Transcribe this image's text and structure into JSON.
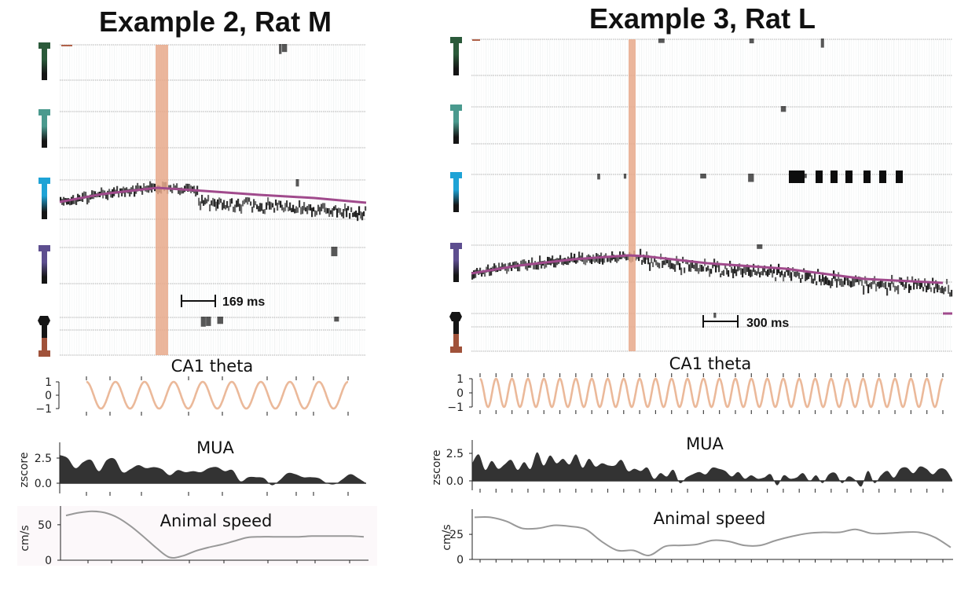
{
  "chart_data": [
    {
      "type": "heatmap",
      "title": "Example 2, Rat M",
      "scale_bar_label": "169 ms",
      "probes": [
        {
          "name": "probe-1",
          "color": "#2b5a3a",
          "shape": "T"
        },
        {
          "name": "probe-2",
          "color": "#4a9a8e",
          "shape": "T"
        },
        {
          "name": "probe-3",
          "color": "#1ea3d6",
          "shape": "T"
        },
        {
          "name": "probe-4",
          "color": "#5d4e8f",
          "shape": "T"
        },
        {
          "name": "probe-5",
          "color": "#a0523a",
          "shape": "bulb"
        }
      ],
      "decoded_probe": 3,
      "highlight_color": "#e8a98b",
      "trajectory_color": "#a04a8c",
      "theta": {
        "title": "CA1 theta",
        "yticks": [
          "1",
          "0",
          "−1"
        ],
        "ylim": [
          -1,
          1
        ],
        "cycles": 9,
        "color": "#ebb99a"
      },
      "mua": {
        "title": "MUA",
        "ylabel": "zscore",
        "yticks": [
          "2.5",
          "0.0"
        ],
        "ytick_values": [
          2.5,
          0.0
        ],
        "values": [
          2.8,
          2.5,
          1.5,
          2.1,
          2.3,
          1.2,
          2.3,
          2.4,
          1.1,
          1.4,
          1.8,
          1.5,
          1.6,
          1.4,
          0.8,
          1.3,
          1.1,
          1.2,
          1.1,
          1.5,
          1.6,
          1.2,
          1.3,
          0.2,
          0.6,
          0.6,
          0.5,
          -0.2,
          0.3,
          1.0,
          0.9,
          0.6,
          0.6,
          0.5,
          0.0,
          -0.1,
          0.4,
          0.9,
          0.5,
          0.0
        ]
      },
      "speed": {
        "title": "Animal speed",
        "ylabel": "cm/s",
        "yticks": [
          "50",
          "0"
        ],
        "ytick_values": [
          50,
          0
        ],
        "ylim": [
          0,
          72
        ],
        "values": [
          63,
          67,
          69,
          67,
          60,
          48,
          33,
          17,
          4,
          6,
          13,
          18,
          22,
          27,
          32,
          33,
          33,
          33,
          33,
          34,
          34,
          34,
          34,
          33
        ]
      }
    },
    {
      "type": "heatmap",
      "title": "Example 3, Rat L",
      "scale_bar_label": "300 ms",
      "probes": [
        {
          "name": "probe-1",
          "color": "#2b5a3a",
          "shape": "T"
        },
        {
          "name": "probe-2",
          "color": "#4a9a8e",
          "shape": "T"
        },
        {
          "name": "probe-3",
          "color": "#1ea3d6",
          "shape": "T"
        },
        {
          "name": "probe-4",
          "color": "#5d4e8f",
          "shape": "T"
        },
        {
          "name": "probe-5",
          "color": "#a0523a",
          "shape": "bulb"
        }
      ],
      "decoded_probe": 4,
      "highlight_color": "#e8a98b",
      "trajectory_color": "#a04a8c",
      "theta": {
        "title": "CA1 theta",
        "yticks": [
          "1",
          "0",
          "−1"
        ],
        "ylim": [
          -1,
          1
        ],
        "cycles": 29,
        "color": "#ebb99a"
      },
      "mua": {
        "title": "MUA",
        "ylabel": "zscore",
        "yticks": [
          "2.5",
          "0.0"
        ],
        "ytick_values": [
          2.5,
          0.0
        ],
        "values": [
          1.6,
          2.4,
          1.0,
          1.8,
          1.1,
          1.5,
          1.9,
          1.0,
          1.7,
          1.1,
          2.6,
          1.4,
          2.3,
          1.6,
          2.0,
          1.5,
          2.4,
          1.2,
          2.0,
          1.3,
          1.6,
          1.4,
          1.4,
          1.9,
          0.9,
          1.1,
          0.9,
          1.2,
          0.2,
          0.7,
          0.4,
          1.0,
          -0.2,
          0.3,
          0.6,
          0.8,
          0.6,
          1.2,
          1.1,
          0.9,
          0.4,
          0.8,
          0.2,
          0.5,
          0.2,
          0.3,
          0.6,
          -0.4,
          0.5,
          0.2,
          0.3,
          0.7,
          0.0,
          0.5,
          -0.2,
          0.6,
          0.7,
          -0.2,
          0.4,
          0.1,
          -0.5,
          0.9,
          -0.2,
          0.5,
          0.9,
          0.3,
          1.1,
          1.2,
          0.7,
          1.3,
          1.1,
          0.6,
          1.1,
          1.0,
          0.1
        ]
      },
      "speed": {
        "title": "Animal speed",
        "ylabel": "cm/s",
        "yticks": [
          "25",
          "0"
        ],
        "ytick_values": [
          25,
          0
        ],
        "ylim": [
          0,
          47
        ],
        "values": [
          42,
          42,
          38,
          31,
          31,
          34,
          33,
          30,
          18,
          9,
          9,
          4,
          13,
          14,
          15,
          19,
          18,
          14,
          14,
          19,
          23,
          26,
          27,
          27,
          30,
          26,
          26,
          27,
          27,
          22,
          12
        ]
      }
    }
  ]
}
